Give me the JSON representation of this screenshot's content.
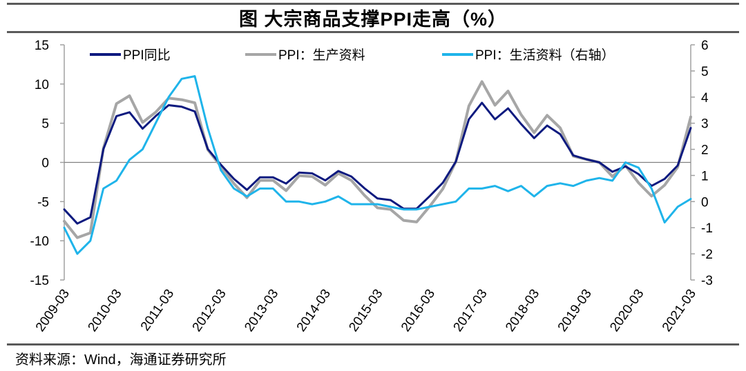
{
  "figure": {
    "title": "图 大宗商品支撑PPI走高（%）",
    "source": "资料来源：Wind，海通证券研究所"
  },
  "chart_data": {
    "type": "line",
    "title": "图 大宗商品支撑PPI走高（%）",
    "xlabel": "",
    "ylabel": "",
    "ylabel_right": "",
    "x_tick_labels": [
      "2009-03",
      "2010-03",
      "2011-03",
      "2012-03",
      "2013-03",
      "2014-03",
      "2015-03",
      "2016-03",
      "2017-03",
      "2018-03",
      "2019-03",
      "2020-03",
      "2021-03"
    ],
    "y_left": {
      "range": [
        -15,
        15
      ],
      "ticks": [
        -15,
        -10,
        -5,
        0,
        5,
        10,
        15
      ]
    },
    "y_right": {
      "range": [
        -3,
        6
      ],
      "ticks": [
        -3,
        -2,
        -1,
        0,
        1,
        2,
        3,
        4,
        5,
        6
      ]
    },
    "grid": false,
    "zero_line": true,
    "legend_position": "top",
    "x": [
      "2009-03",
      "2009-06",
      "2009-09",
      "2009-12",
      "2010-03",
      "2010-06",
      "2010-09",
      "2010-12",
      "2011-03",
      "2011-06",
      "2011-09",
      "2011-12",
      "2012-03",
      "2012-06",
      "2012-09",
      "2012-12",
      "2013-03",
      "2013-06",
      "2013-09",
      "2013-12",
      "2014-03",
      "2014-06",
      "2014-09",
      "2014-12",
      "2015-03",
      "2015-06",
      "2015-09",
      "2015-12",
      "2016-03",
      "2016-06",
      "2016-09",
      "2016-12",
      "2017-03",
      "2017-06",
      "2017-09",
      "2017-12",
      "2018-03",
      "2018-06",
      "2018-09",
      "2018-12",
      "2019-03",
      "2019-06",
      "2019-09",
      "2019-12",
      "2020-03",
      "2020-06",
      "2020-09",
      "2020-12",
      "2021-03"
    ],
    "series": [
      {
        "name": "PPI同比",
        "axis": "left",
        "color": "#0d1a7f",
        "values": [
          -6.0,
          -7.8,
          -7.0,
          1.7,
          5.9,
          6.4,
          4.3,
          5.9,
          7.3,
          7.1,
          6.5,
          1.7,
          -0.3,
          -2.1,
          -3.5,
          -1.9,
          -1.9,
          -2.7,
          -1.3,
          -1.4,
          -2.3,
          -1.1,
          -1.8,
          -3.3,
          -4.6,
          -4.8,
          -5.9,
          -5.9,
          -4.3,
          -2.6,
          0.1,
          5.5,
          7.6,
          5.5,
          6.9,
          4.9,
          3.1,
          4.7,
          3.6,
          0.9,
          0.4,
          0.0,
          -1.2,
          -0.5,
          -1.5,
          -3.0,
          -2.1,
          -0.4,
          4.4
        ]
      },
      {
        "name": "PPI：生产资料",
        "axis": "left",
        "color": "#a6a6a6",
        "values": [
          -7.5,
          -9.6,
          -9.0,
          1.8,
          7.5,
          8.5,
          5.1,
          6.4,
          8.2,
          8.0,
          7.6,
          1.6,
          -0.5,
          -2.7,
          -4.5,
          -2.3,
          -2.3,
          -3.6,
          -1.7,
          -1.8,
          -2.9,
          -1.4,
          -2.3,
          -4.2,
          -5.8,
          -6.0,
          -7.4,
          -7.6,
          -5.6,
          -3.4,
          0.1,
          7.2,
          10.3,
          7.3,
          9.1,
          6.1,
          3.8,
          6.0,
          4.4,
          0.8,
          0.4,
          0.0,
          -1.8,
          -0.4,
          -2.6,
          -4.3,
          -2.9,
          -0.6,
          5.8
        ]
      },
      {
        "name": "PPI：生活资料（右轴）",
        "axis": "right",
        "color": "#1fb4ea",
        "values": [
          -1.0,
          -2.0,
          -1.5,
          0.5,
          0.8,
          1.6,
          2.0,
          3.0,
          4.0,
          4.7,
          4.8,
          2.8,
          1.2,
          0.5,
          0.2,
          0.5,
          0.5,
          0.0,
          0.0,
          -0.1,
          0.0,
          0.2,
          -0.1,
          -0.1,
          -0.1,
          -0.2,
          -0.3,
          -0.3,
          -0.2,
          -0.1,
          0.0,
          0.5,
          0.5,
          0.6,
          0.4,
          0.6,
          0.2,
          0.6,
          0.7,
          0.6,
          0.8,
          0.9,
          0.8,
          1.5,
          1.3,
          0.5,
          -0.8,
          -0.2,
          0.1
        ]
      }
    ]
  }
}
